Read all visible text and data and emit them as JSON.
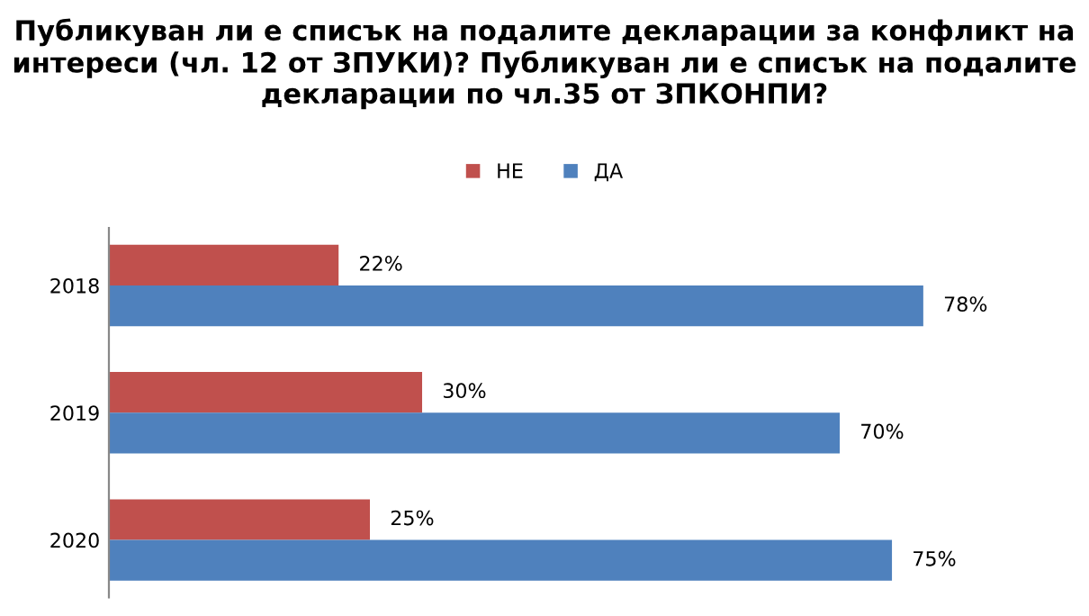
{
  "chart_data": {
    "type": "bar",
    "orientation": "horizontal",
    "title": "Публикуван ли е списък на подалите декларации за конфликт на интереси (чл. 12 от ЗПУКИ)? Публикуван ли е списък на подалите декларации по чл.35 от ЗПКОНПИ?",
    "categories": [
      "2018",
      "2019",
      "2020"
    ],
    "series": [
      {
        "name": "НЕ",
        "color": "#c0504d",
        "values": [
          22,
          30,
          25
        ],
        "value_labels": [
          "22%",
          "30%",
          "25%"
        ]
      },
      {
        "name": "ДА",
        "color": "#4f81bd",
        "values": [
          78,
          70,
          75
        ],
        "value_labels": [
          "78%",
          "70%",
          "75%"
        ]
      }
    ],
    "legend": "top",
    "grid": false
  }
}
